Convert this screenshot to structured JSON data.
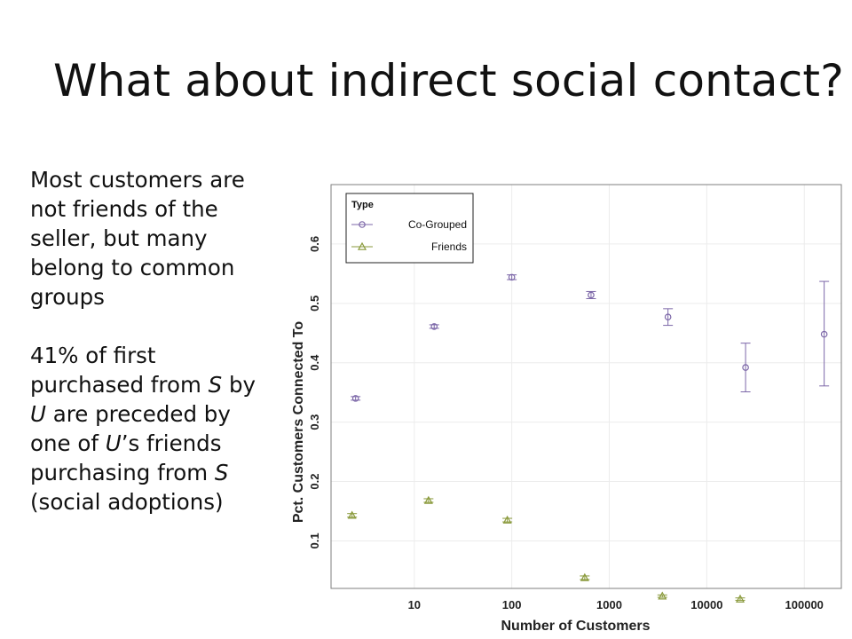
{
  "slide": {
    "title": "What about indirect social contact?",
    "paragraph1": "Most customers are not friends of the seller, but many belong to common groups",
    "paragraph2": {
      "parts": [
        "41% of first purchased from ",
        "S",
        " by ",
        "U",
        " are preceded by one of ",
        "U",
        "’s friends purchasing from ",
        "S",
        " (social adoptions)"
      ]
    }
  },
  "chart_data": {
    "type": "scatter",
    "xlabel": "Number of Customers",
    "ylabel": "Pct. Customers Connected To",
    "x_scale": "log",
    "xlim": [
      1.4,
      240000
    ],
    "ylim": [
      0.02,
      0.7
    ],
    "x_ticks": [
      10,
      100,
      1000,
      10000,
      100000
    ],
    "x_tick_labels": [
      "10",
      "100",
      "1000",
      "10000",
      "100000"
    ],
    "y_ticks": [
      0.1,
      0.2,
      0.3,
      0.4,
      0.5,
      0.6
    ],
    "y_tick_labels": [
      "0.1",
      "0.2",
      "0.3",
      "0.4",
      "0.5",
      "0.6"
    ],
    "grid": true,
    "legend": {
      "title": "Type",
      "placement": "top-left"
    },
    "series": [
      {
        "name": "Co-Grouped",
        "marker": "circle",
        "color": "#7c67a8",
        "points": [
          {
            "x": 2.5,
            "y": 0.34,
            "lo": 0.337,
            "hi": 0.343
          },
          {
            "x": 16,
            "y": 0.461,
            "lo": 0.458,
            "hi": 0.464
          },
          {
            "x": 100,
            "y": 0.544,
            "lo": 0.54,
            "hi": 0.548
          },
          {
            "x": 650,
            "y": 0.514,
            "lo": 0.508,
            "hi": 0.52
          },
          {
            "x": 4000,
            "y": 0.477,
            "lo": 0.463,
            "hi": 0.491
          },
          {
            "x": 25000,
            "y": 0.392,
            "lo": 0.351,
            "hi": 0.433
          },
          {
            "x": 160000,
            "y": 0.448,
            "lo": 0.361,
            "hi": 0.537
          }
        ]
      },
      {
        "name": "Friends",
        "marker": "triangle",
        "color": "#8a9a3c",
        "points": [
          {
            "x": 2.3,
            "y": 0.143,
            "lo": 0.14,
            "hi": 0.146
          },
          {
            "x": 14,
            "y": 0.168,
            "lo": 0.165,
            "hi": 0.171
          },
          {
            "x": 90,
            "y": 0.135,
            "lo": 0.132,
            "hi": 0.138
          },
          {
            "x": 560,
            "y": 0.038,
            "lo": 0.035,
            "hi": 0.041
          },
          {
            "x": 3500,
            "y": 0.007,
            "lo": 0.005,
            "hi": 0.009
          },
          {
            "x": 22000,
            "y": 0.002,
            "lo": 0.0,
            "hi": 0.004
          }
        ]
      }
    ]
  }
}
